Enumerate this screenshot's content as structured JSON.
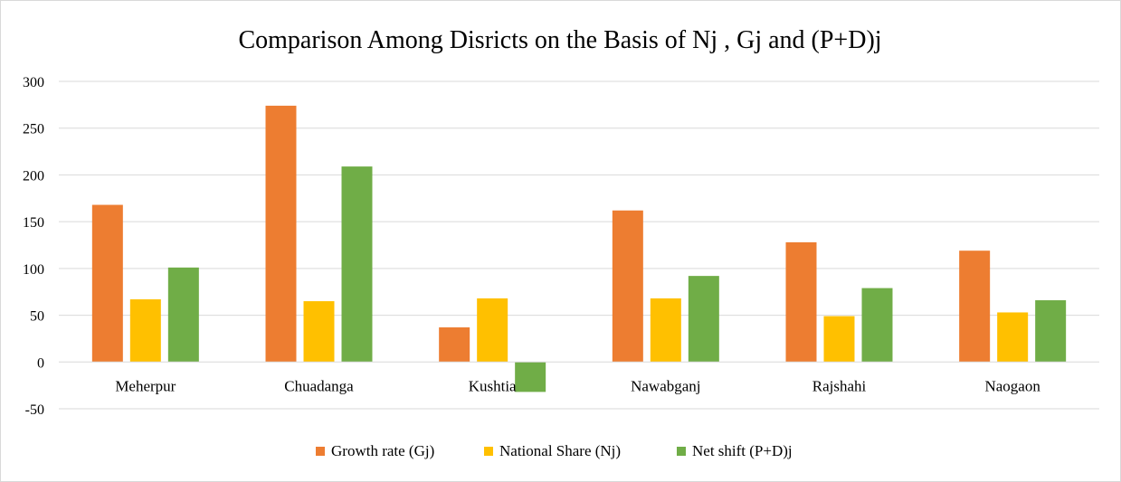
{
  "chart_data": {
    "type": "bar",
    "title": "Comparison Among Disricts on the Basis of Nj , Gj and (P+D)j",
    "xlabel": "",
    "ylabel": "",
    "categories": [
      "Meherpur",
      "Chuadanga",
      "Kushtia",
      "Nawabganj",
      "Rajshahi",
      "Naogaon"
    ],
    "series": [
      {
        "name": "Growth rate (Gj)",
        "color": "#ED7D31",
        "values": [
          168,
          274,
          37,
          162,
          128,
          119
        ]
      },
      {
        "name": "National Share (Nj)",
        "color": "#FFC000",
        "values": [
          67,
          65,
          68,
          68,
          49,
          53
        ]
      },
      {
        "name": "Net shift (P+D)j",
        "color": "#70AD47",
        "values": [
          101,
          209,
          -32,
          92,
          79,
          66
        ]
      }
    ],
    "ylim": [
      -50,
      300
    ],
    "yticks": [
      -50,
      0,
      50,
      100,
      150,
      200,
      250,
      300
    ],
    "grid": true,
    "legend_position": "bottom"
  }
}
